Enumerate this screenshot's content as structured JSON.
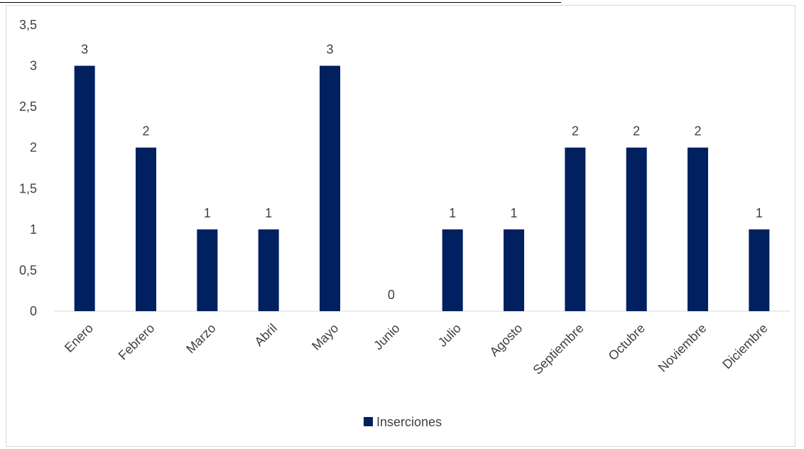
{
  "chart_data": {
    "type": "bar",
    "categories": [
      "Enero",
      "Febrero",
      "Marzo",
      "Abril",
      "Mayo",
      "Junio",
      "Julio",
      "Agosto",
      "Septiembre",
      "Octubre",
      "Noviembre",
      "Diciembre"
    ],
    "series": [
      {
        "name": "Inserciones",
        "values": [
          3,
          2,
          1,
          1,
          3,
          0,
          1,
          1,
          2,
          2,
          2,
          1
        ],
        "color": "#002060"
      }
    ],
    "ylim": [
      0,
      3.5
    ],
    "yticks": [
      "0",
      "0,5",
      "1",
      "1,5",
      "2",
      "2,5",
      "3",
      "3,5"
    ],
    "data_labels": true,
    "grid": false,
    "legend_position": "bottom"
  }
}
